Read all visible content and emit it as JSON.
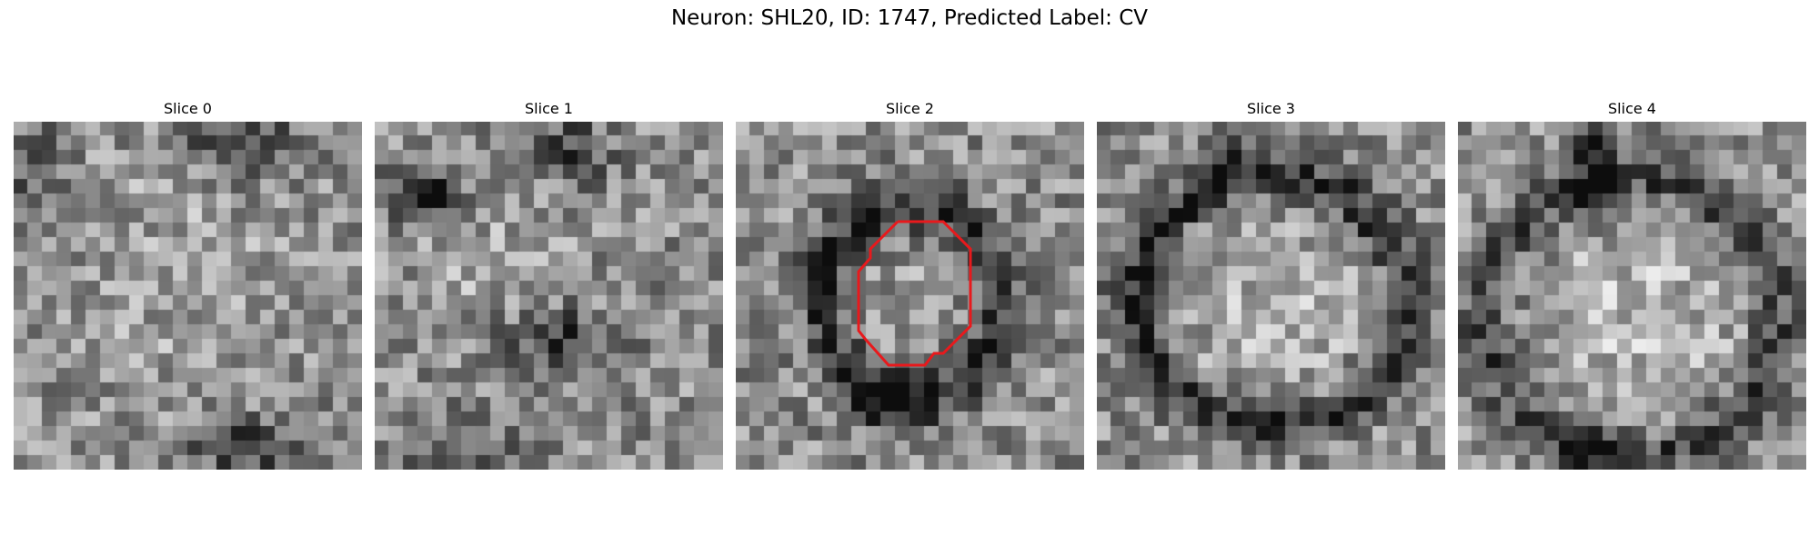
{
  "figure": {
    "title": "Neuron: SHL20, ID: 1747, Predicted Label: CV"
  },
  "slices": [
    {
      "label": "Slice 0",
      "pattern": "noise-dark-patches"
    },
    {
      "label": "Slice 1",
      "pattern": "noise-dark-blobs"
    },
    {
      "label": "Slice 2",
      "pattern": "small-ring",
      "has_contour": true
    },
    {
      "label": "Slice 3",
      "pattern": "large-ring"
    },
    {
      "label": "Slice 4",
      "pattern": "large-ring-soft"
    }
  ],
  "colors": {
    "contour": "#e8191c",
    "colormap": "grayscale"
  }
}
